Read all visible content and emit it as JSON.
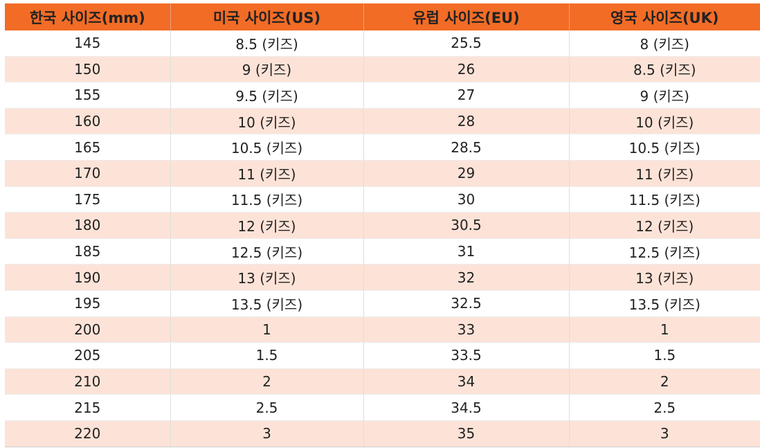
{
  "colors": {
    "header_bg": "#f26c26",
    "row_alt_bg": "#fde3d7",
    "row_bg": "#ffffff"
  },
  "table": {
    "headers": [
      "한국 사이즈(mm)",
      "미국 사이즈(US)",
      "유럽 사이즈(EU)",
      "영국 사이즈(UK)"
    ],
    "rows": [
      [
        "145",
        "8.5 (키즈)",
        "25.5",
        "8 (키즈)"
      ],
      [
        "150",
        "9 (키즈)",
        "26",
        "8.5 (키즈)"
      ],
      [
        "155",
        "9.5 (키즈)",
        "27",
        "9 (키즈)"
      ],
      [
        "160",
        "10 (키즈)",
        "28",
        "10 (키즈)"
      ],
      [
        "165",
        "10.5 (키즈)",
        "28.5",
        "10.5 (키즈)"
      ],
      [
        "170",
        "11 (키즈)",
        "29",
        "11 (키즈)"
      ],
      [
        "175",
        "11.5 (키즈)",
        "30",
        "11.5 (키즈)"
      ],
      [
        "180",
        "12 (키즈)",
        "30.5",
        "12 (키즈)"
      ],
      [
        "185",
        "12.5 (키즈)",
        "31",
        "12.5 (키즈)"
      ],
      [
        "190",
        "13 (키즈)",
        "32",
        "13 (키즈)"
      ],
      [
        "195",
        "13.5 (키즈)",
        "32.5",
        "13.5 (키즈)"
      ],
      [
        "200",
        "1",
        "33",
        "1"
      ],
      [
        "205",
        "1.5",
        "33.5",
        "1.5"
      ],
      [
        "210",
        "2",
        "34",
        "2"
      ],
      [
        "215",
        "2.5",
        "34.5",
        "2.5"
      ],
      [
        "220",
        "3",
        "35",
        "3"
      ]
    ]
  }
}
